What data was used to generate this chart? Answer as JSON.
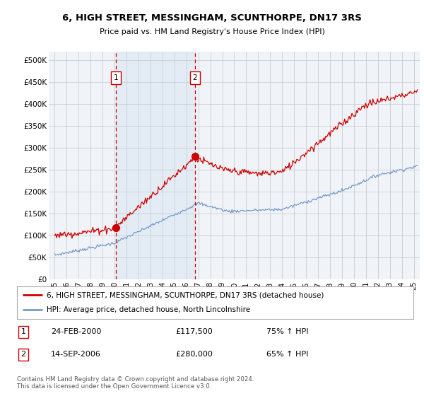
{
  "title": "6, HIGH STREET, MESSINGHAM, SCUNTHORPE, DN17 3RS",
  "subtitle": "Price paid vs. HM Land Registry's House Price Index (HPI)",
  "legend_line1": "6, HIGH STREET, MESSINGHAM, SCUNTHORPE, DN17 3RS (detached house)",
  "legend_line2": "HPI: Average price, detached house, North Lincolnshire",
  "footer": "Contains HM Land Registry data © Crown copyright and database right 2024.\nThis data is licensed under the Open Government Licence v3.0.",
  "sale1_label": "1",
  "sale1_date": "24-FEB-2000",
  "sale1_price": "£117,500",
  "sale1_hpi": "75% ↑ HPI",
  "sale2_label": "2",
  "sale2_date": "14-SEP-2006",
  "sale2_price": "£280,000",
  "sale2_hpi": "65% ↑ HPI",
  "sale1_x": 2000.12,
  "sale1_y": 117500,
  "sale2_x": 2006.71,
  "sale2_y": 280000,
  "vline1_x": 2000.12,
  "vline2_x": 2006.71,
  "red_color": "#cc0000",
  "blue_color": "#7799cc",
  "plot_bg": "#f0f4f8",
  "ylim": [
    0,
    520000
  ],
  "xlim_start": 1994.5,
  "xlim_end": 2025.5,
  "yticks": [
    0,
    50000,
    100000,
    150000,
    200000,
    250000,
    300000,
    350000,
    400000,
    450000,
    500000
  ],
  "ytick_labels": [
    "£0",
    "£50K",
    "£100K",
    "£150K",
    "£200K",
    "£250K",
    "£300K",
    "£350K",
    "£400K",
    "£450K",
    "£500K"
  ],
  "xticks": [
    1995,
    1996,
    1997,
    1998,
    1999,
    2000,
    2001,
    2002,
    2003,
    2004,
    2005,
    2006,
    2007,
    2008,
    2009,
    2010,
    2011,
    2012,
    2013,
    2014,
    2015,
    2016,
    2017,
    2018,
    2019,
    2020,
    2021,
    2022,
    2023,
    2024,
    2025
  ]
}
